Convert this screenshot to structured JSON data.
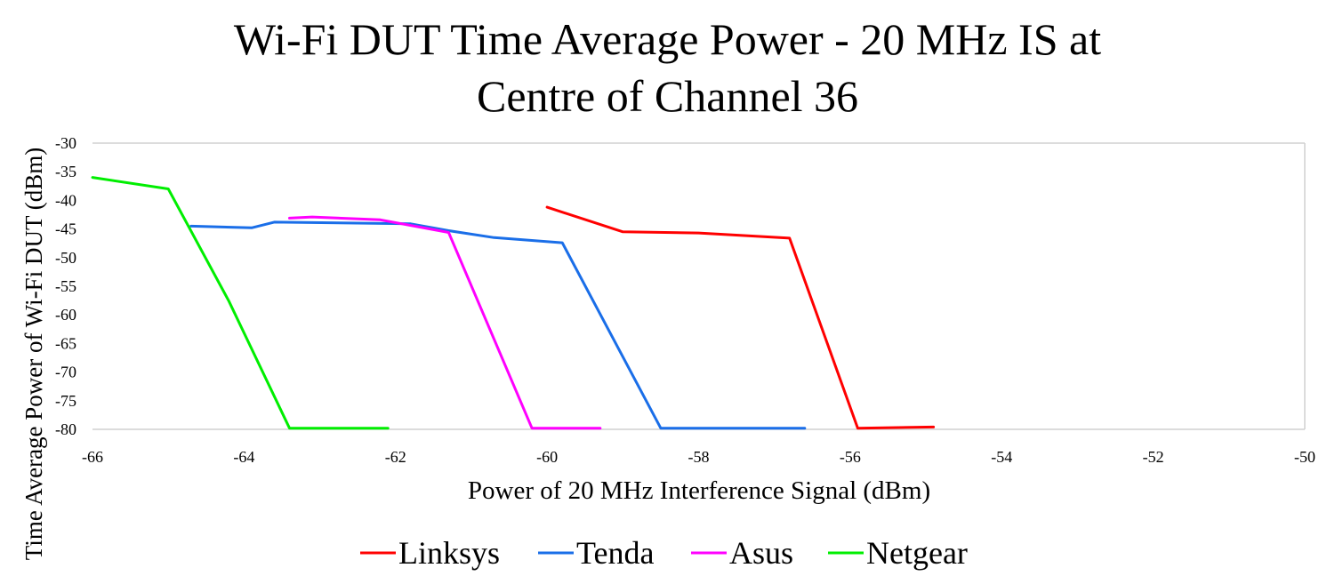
{
  "chart_data": {
    "type": "line",
    "title_lines": [
      "Wi-Fi DUT Time Average Power - 20 MHz IS at",
      "Centre of Channel 36"
    ],
    "xlabel": "Power of 20 MHz Interference Signal (dBm)",
    "ylabel": "Time Average Power of Wi-Fi DUT (dBm)",
    "xlim": [
      -66,
      -50
    ],
    "ylim": [
      -80,
      -30
    ],
    "xticks": [
      -66,
      -64,
      -62,
      -60,
      -58,
      -56,
      -54,
      -52,
      -50
    ],
    "yticks": [
      -30,
      -35,
      -40,
      -45,
      -50,
      -55,
      -60,
      -65,
      -70,
      -75,
      -80
    ],
    "grid": false,
    "legend_position": "bottom",
    "series": [
      {
        "name": "Linksys",
        "color": "#ff0000",
        "points": [
          [
            -60,
            -41.2
          ],
          [
            -59,
            -45.5
          ],
          [
            -58,
            -45.7
          ],
          [
            -56.8,
            -46.6
          ],
          [
            -55.9,
            -79.8
          ],
          [
            -54.9,
            -79.6
          ]
        ]
      },
      {
        "name": "Tenda",
        "color": "#1a6ee8",
        "points": [
          [
            -64.7,
            -44.5
          ],
          [
            -63.9,
            -44.8
          ],
          [
            -63.6,
            -43.8
          ],
          [
            -61.8,
            -44.1
          ],
          [
            -61.3,
            -45.3
          ],
          [
            -60.7,
            -46.5
          ],
          [
            -59.8,
            -47.4
          ],
          [
            -58.5,
            -79.8
          ],
          [
            -56.6,
            -79.8
          ]
        ]
      },
      {
        "name": "Asus",
        "color": "#ff00ff",
        "points": [
          [
            -63.4,
            -43.1
          ],
          [
            -63.1,
            -42.9
          ],
          [
            -62.2,
            -43.4
          ],
          [
            -61.3,
            -45.6
          ],
          [
            -60.2,
            -79.8
          ],
          [
            -59.3,
            -79.8
          ]
        ]
      },
      {
        "name": "Netgear",
        "color": "#00ee00",
        "points": [
          [
            -66,
            -36
          ],
          [
            -65,
            -38
          ],
          [
            -64.2,
            -57.6
          ],
          [
            -63.4,
            -79.8
          ],
          [
            -62.1,
            -79.8
          ]
        ]
      }
    ]
  }
}
